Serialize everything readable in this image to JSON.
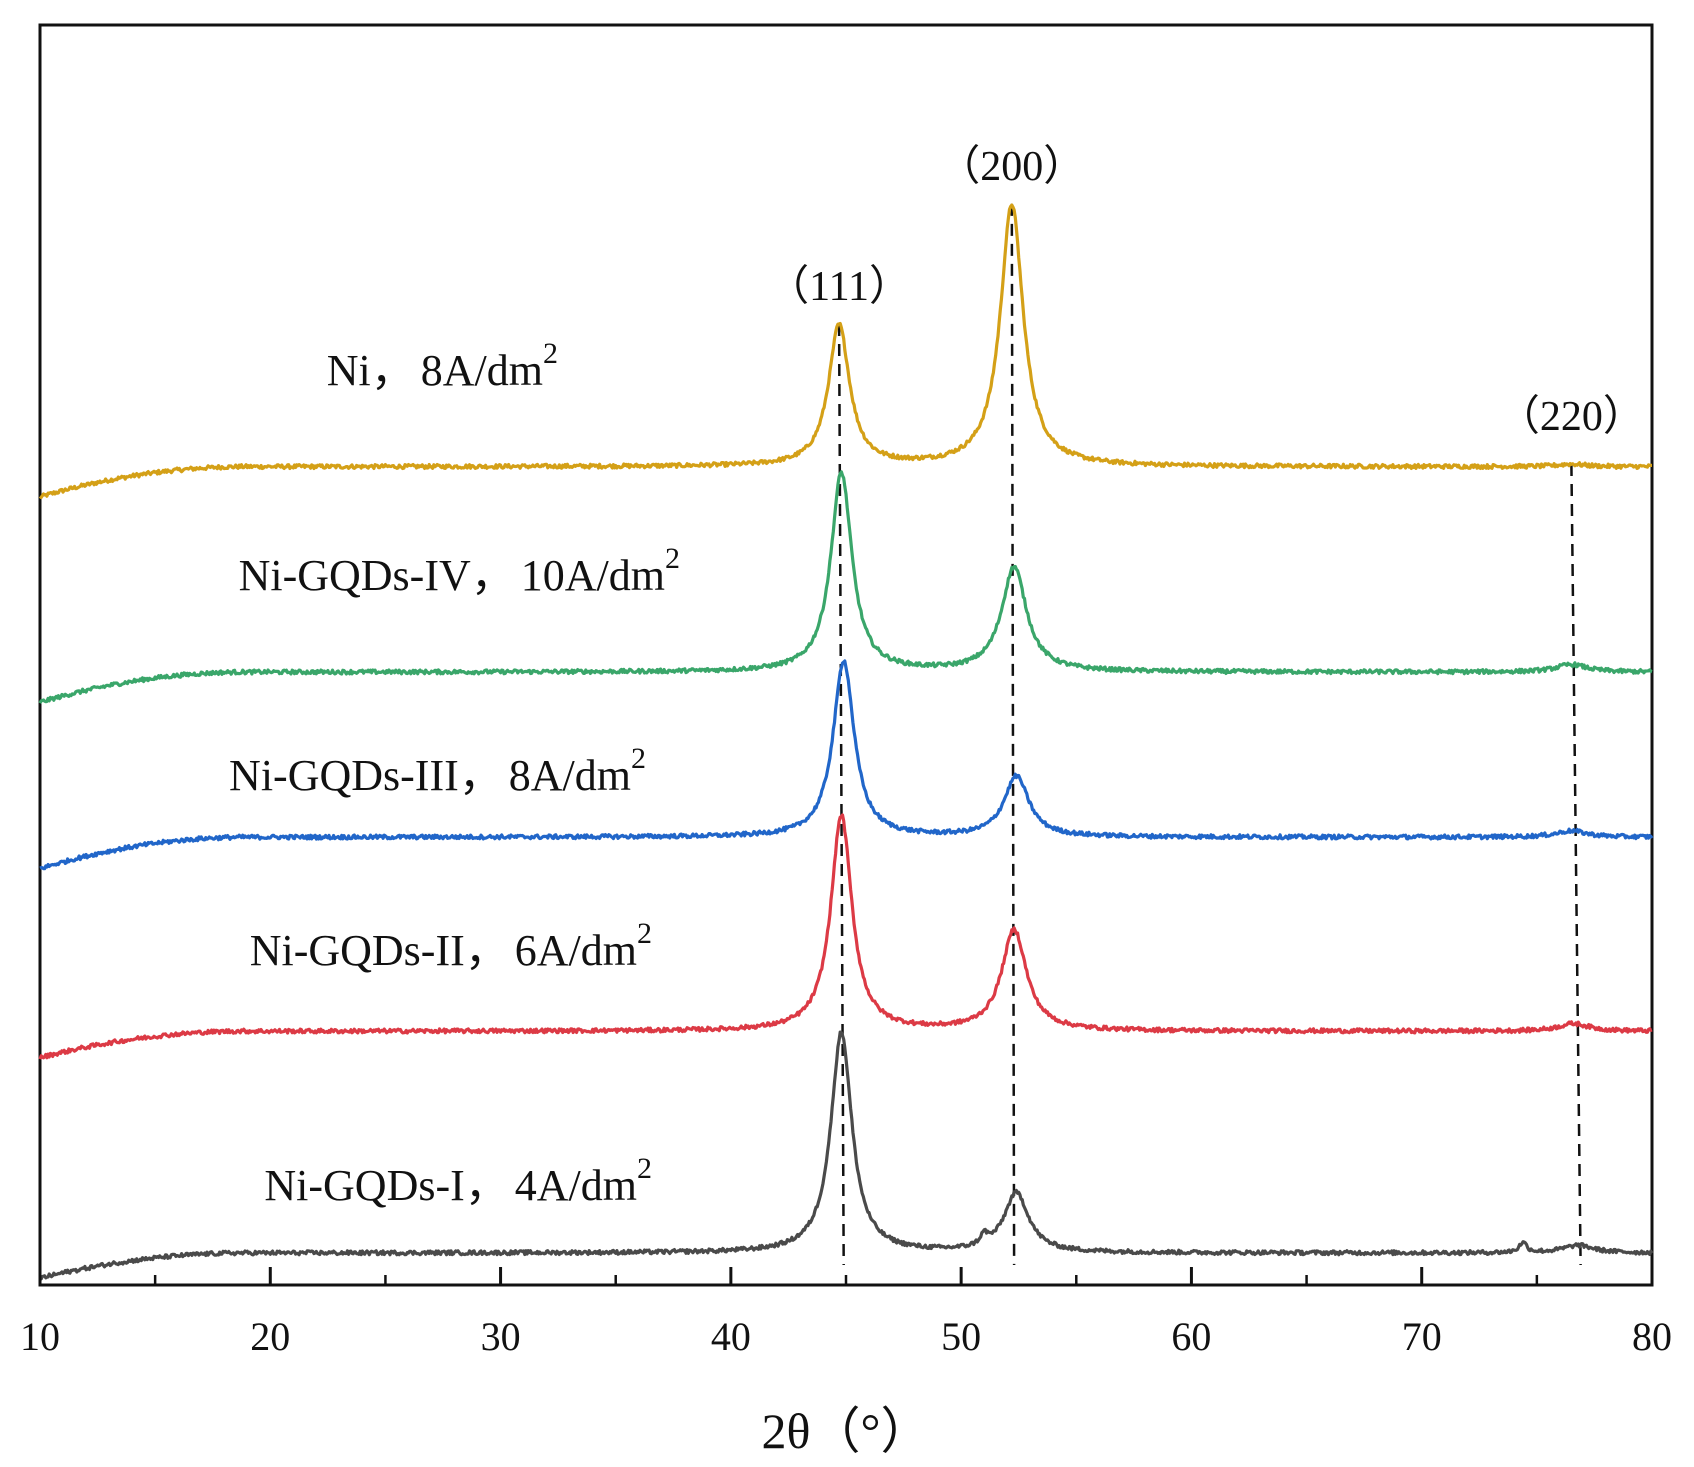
{
  "chart_data": {
    "type": "line",
    "title": "",
    "xlabel": "2θ（°）",
    "ylabel": "",
    "xlim": [
      10,
      80
    ],
    "xticks": [
      10,
      20,
      30,
      40,
      50,
      60,
      70,
      80
    ],
    "xtick_labels": [
      "10",
      "20",
      "30",
      "40",
      "50",
      "60",
      "70",
      "80"
    ],
    "yaxis_ticks": false,
    "colors": {
      "Ni": "#d4a017",
      "Ni-GQDs-IV": "#3aa66a",
      "Ni-GQDs-III": "#2166c9",
      "Ni-GQDs-II": "#dc3a45",
      "Ni-GQDs-I": "#4a4a4a"
    },
    "series": [
      {
        "name": "Ni",
        "label_name": "Ni，",
        "label_value": "8A/dm",
        "label_sup": "2",
        "color": "#d4a017",
        "baseline_start": 0.2,
        "baseline": 0.224,
        "peaks": [
          {
            "center": 44.7,
            "height": 0.112,
            "width": 0.55
          },
          {
            "center": 52.2,
            "height": 0.208,
            "width": 0.6
          },
          {
            "center": 76.5,
            "height": 0.002,
            "width": 0.7
          }
        ]
      },
      {
        "name": "Ni-GQDs-IV",
        "label_name": "Ni-GQDs-IV，",
        "label_value": "10A/dm",
        "label_sup": "2",
        "color": "#3aa66a",
        "baseline_start": 0.037,
        "baseline": 0.061,
        "peaks": [
          {
            "center": 44.8,
            "height": 0.158,
            "width": 0.55
          },
          {
            "center": 52.3,
            "height": 0.083,
            "width": 0.65
          },
          {
            "center": 76.5,
            "height": 0.006,
            "width": 0.8
          }
        ]
      },
      {
        "name": "Ni-GQDs-III",
        "label_name": "Ni-GQDs-III，",
        "label_value": "8A/dm",
        "label_sup": "2",
        "color": "#2166c9",
        "baseline_start": -0.095,
        "baseline": -0.07,
        "peaks": [
          {
            "center": 44.9,
            "height": 0.14,
            "width": 0.55
          },
          {
            "center": 52.4,
            "height": 0.048,
            "width": 0.65
          },
          {
            "center": 76.5,
            "height": 0.005,
            "width": 0.8
          }
        ]
      },
      {
        "name": "Ni-GQDs-II",
        "label_name": "Ni-GQDs-II，",
        "label_value": "6A/dm",
        "label_sup": "2",
        "color": "#dc3a45",
        "baseline_start": -0.245,
        "baseline": -0.224,
        "peaks": [
          {
            "center": 44.8,
            "height": 0.171,
            "width": 0.55
          },
          {
            "center": 52.3,
            "height": 0.08,
            "width": 0.65
          },
          {
            "center": 76.6,
            "height": 0.006,
            "width": 0.8
          }
        ]
      },
      {
        "name": "Ni-GQDs-I",
        "label_name": "Ni-GQDs-I，",
        "label_value": "4A/dm",
        "label_sup": "2",
        "color": "#4a4a4a",
        "baseline_start": -0.42,
        "baseline": -0.4,
        "peaks": [
          {
            "center": 44.8,
            "height": 0.175,
            "width": 0.55
          },
          {
            "center": 52.4,
            "height": 0.047,
            "width": 0.65
          },
          {
            "center": 51.0,
            "height": 0.008,
            "width": 0.2
          },
          {
            "center": 74.4,
            "height": 0.008,
            "width": 0.2
          },
          {
            "center": 76.8,
            "height": 0.006,
            "width": 0.8
          }
        ]
      }
    ],
    "annotations": [
      {
        "label": "（111）",
        "x_top": 44.7,
        "x_bottom": 44.9
      },
      {
        "label": "（200）",
        "x_top": 52.2,
        "x_bottom": 52.3
      },
      {
        "label": "（220）",
        "x_top": 76.5,
        "x_bottom": 76.9
      }
    ]
  }
}
